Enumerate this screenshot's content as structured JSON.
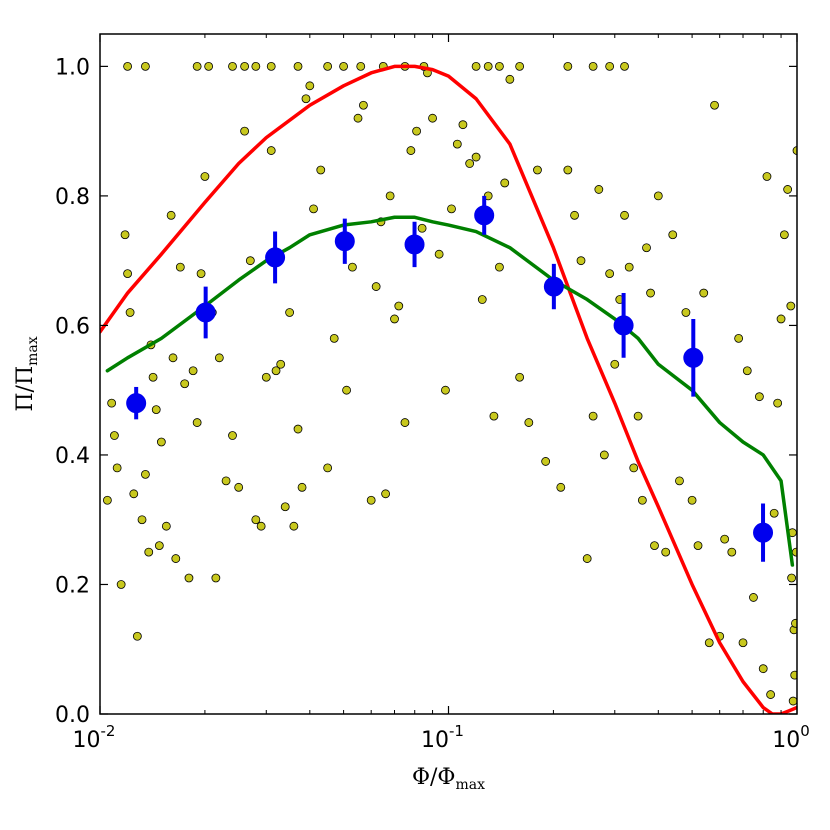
{
  "chart_data": {
    "type": "scatter",
    "xscale": "log",
    "xlim": [
      0.01,
      1.0
    ],
    "ylim": [
      0.0,
      1.05
    ],
    "grid": false,
    "xlabel": "Φ/Φ",
    "xlabel_sub": "max",
    "ylabel": "Π/Π",
    "ylabel_sub": "max",
    "x_ticks": [
      {
        "value": 0.01,
        "base": "10",
        "exp": "-2"
      },
      {
        "value": 0.1,
        "base": "10",
        "exp": "-1"
      },
      {
        "value": 1.0,
        "base": "10",
        "exp": "0"
      }
    ],
    "y_ticks": [
      {
        "value": 0.0,
        "label": "0.0"
      },
      {
        "value": 0.2,
        "label": "0.2"
      },
      {
        "value": 0.4,
        "label": "0.4"
      },
      {
        "value": 0.6,
        "label": "0.6"
      },
      {
        "value": 0.8,
        "label": "0.8"
      },
      {
        "value": 1.0,
        "label": "1.0"
      }
    ],
    "colors": {
      "scatter_fill": "#c8c81e",
      "scatter_edge": "#000000",
      "red_curve": "#ff0000",
      "green_curve": "#008000",
      "binned": "#0000ee"
    },
    "scatter": [
      [
        0.0105,
        0.33
      ],
      [
        0.0108,
        0.48
      ],
      [
        0.011,
        0.43
      ],
      [
        0.0112,
        0.38
      ],
      [
        0.0115,
        0.2
      ],
      [
        0.0118,
        0.74
      ],
      [
        0.012,
        0.68
      ],
      [
        0.0122,
        0.62
      ],
      [
        0.0125,
        0.34
      ],
      [
        0.0128,
        0.12
      ],
      [
        0.013,
        0.48
      ],
      [
        0.0132,
        0.3
      ],
      [
        0.0135,
        0.37
      ],
      [
        0.0138,
        0.25
      ],
      [
        0.014,
        0.57
      ],
      [
        0.0142,
        0.52
      ],
      [
        0.0145,
        0.47
      ],
      [
        0.0148,
        0.26
      ],
      [
        0.015,
        0.42
      ],
      [
        0.0155,
        0.29
      ],
      [
        0.016,
        0.77
      ],
      [
        0.0162,
        0.55
      ],
      [
        0.0165,
        0.24
      ],
      [
        0.017,
        0.69
      ],
      [
        0.0175,
        0.51
      ],
      [
        0.018,
        0.21
      ],
      [
        0.0185,
        0.53
      ],
      [
        0.019,
        0.45
      ],
      [
        0.0195,
        0.68
      ],
      [
        0.02,
        0.83
      ],
      [
        0.021,
        0.62
      ],
      [
        0.0215,
        0.21
      ],
      [
        0.022,
        0.55
      ],
      [
        0.023,
        0.36
      ],
      [
        0.024,
        0.43
      ],
      [
        0.025,
        0.35
      ],
      [
        0.026,
        0.9
      ],
      [
        0.027,
        0.7
      ],
      [
        0.028,
        0.3
      ],
      [
        0.029,
        0.29
      ],
      [
        0.03,
        0.52
      ],
      [
        0.031,
        0.87
      ],
      [
        0.032,
        0.53
      ],
      [
        0.033,
        0.54
      ],
      [
        0.034,
        0.32
      ],
      [
        0.035,
        0.62
      ],
      [
        0.036,
        0.29
      ],
      [
        0.037,
        0.44
      ],
      [
        0.038,
        0.35
      ],
      [
        0.039,
        0.95
      ],
      [
        0.04,
        0.97
      ],
      [
        0.041,
        0.78
      ],
      [
        0.043,
        0.84
      ],
      [
        0.045,
        0.38
      ],
      [
        0.047,
        0.58
      ],
      [
        0.049,
        0.73
      ],
      [
        0.051,
        0.5
      ],
      [
        0.053,
        0.69
      ],
      [
        0.055,
        0.92
      ],
      [
        0.057,
        0.94
      ],
      [
        0.06,
        0.33
      ],
      [
        0.062,
        0.66
      ],
      [
        0.064,
        0.76
      ],
      [
        0.066,
        0.34
      ],
      [
        0.068,
        0.8
      ],
      [
        0.07,
        0.61
      ],
      [
        0.072,
        0.63
      ],
      [
        0.075,
        0.45
      ],
      [
        0.078,
        0.87
      ],
      [
        0.081,
        0.9
      ],
      [
        0.084,
        0.75
      ],
      [
        0.087,
        0.99
      ],
      [
        0.09,
        0.92
      ],
      [
        0.094,
        0.71
      ],
      [
        0.098,
        0.5
      ],
      [
        0.102,
        0.78
      ],
      [
        0.106,
        0.88
      ],
      [
        0.11,
        0.91
      ],
      [
        0.115,
        0.85
      ],
      [
        0.12,
        0.86
      ],
      [
        0.125,
        0.64
      ],
      [
        0.13,
        0.8
      ],
      [
        0.135,
        0.46
      ],
      [
        0.14,
        0.69
      ],
      [
        0.145,
        0.82
      ],
      [
        0.15,
        0.98
      ],
      [
        0.16,
        0.52
      ],
      [
        0.17,
        0.45
      ],
      [
        0.18,
        0.84
      ],
      [
        0.19,
        0.39
      ],
      [
        0.2,
        0.66
      ],
      [
        0.21,
        0.35
      ],
      [
        0.22,
        0.84
      ],
      [
        0.23,
        0.77
      ],
      [
        0.24,
        0.7
      ],
      [
        0.25,
        0.24
      ],
      [
        0.26,
        0.46
      ],
      [
        0.27,
        0.81
      ],
      [
        0.28,
        0.4
      ],
      [
        0.29,
        0.68
      ],
      [
        0.3,
        0.54
      ],
      [
        0.31,
        0.64
      ],
      [
        0.32,
        0.77
      ],
      [
        0.33,
        0.69
      ],
      [
        0.34,
        0.38
      ],
      [
        0.35,
        0.46
      ],
      [
        0.36,
        0.33
      ],
      [
        0.37,
        0.72
      ],
      [
        0.38,
        0.65
      ],
      [
        0.39,
        0.26
      ],
      [
        0.4,
        0.8
      ],
      [
        0.42,
        0.25
      ],
      [
        0.44,
        0.74
      ],
      [
        0.46,
        0.36
      ],
      [
        0.48,
        0.62
      ],
      [
        0.5,
        0.33
      ],
      [
        0.52,
        0.26
      ],
      [
        0.54,
        0.65
      ],
      [
        0.56,
        0.11
      ],
      [
        0.58,
        0.94
      ],
      [
        0.6,
        0.12
      ],
      [
        0.62,
        0.27
      ],
      [
        0.65,
        0.25
      ],
      [
        0.68,
        0.58
      ],
      [
        0.7,
        0.11
      ],
      [
        0.72,
        0.53
      ],
      [
        0.75,
        0.18
      ],
      [
        0.78,
        0.49
      ],
      [
        0.8,
        0.07
      ],
      [
        0.82,
        0.83
      ],
      [
        0.84,
        0.03
      ],
      [
        0.86,
        0.31
      ],
      [
        0.88,
        0.48
      ],
      [
        0.9,
        0.61
      ],
      [
        0.92,
        0.74
      ],
      [
        0.94,
        0.81
      ],
      [
        0.96,
        0.63
      ],
      [
        0.97,
        0.28
      ],
      [
        0.98,
        0.13
      ],
      [
        0.99,
        0.14
      ],
      [
        1.0,
        0.87
      ],
      [
        0.995,
        0.25
      ],
      [
        0.985,
        0.06
      ],
      [
        0.975,
        0.02
      ],
      [
        0.965,
        0.21
      ],
      [
        0.012,
        1.0
      ],
      [
        0.0135,
        1.0
      ],
      [
        0.019,
        1.0
      ],
      [
        0.0205,
        1.0
      ],
      [
        0.024,
        1.0
      ],
      [
        0.026,
        1.0
      ],
      [
        0.028,
        1.0
      ],
      [
        0.031,
        1.0
      ],
      [
        0.037,
        1.0
      ],
      [
        0.045,
        1.0
      ],
      [
        0.05,
        1.0
      ],
      [
        0.056,
        1.0
      ],
      [
        0.065,
        1.0
      ],
      [
        0.075,
        1.0
      ],
      [
        0.085,
        1.0
      ],
      [
        0.12,
        1.0
      ],
      [
        0.13,
        1.0
      ],
      [
        0.14,
        1.0
      ],
      [
        0.16,
        1.0
      ],
      [
        0.22,
        1.0
      ],
      [
        0.26,
        1.0
      ],
      [
        0.29,
        1.0
      ],
      [
        0.32,
        1.0
      ]
    ],
    "red_curve": [
      [
        0.01,
        0.59
      ],
      [
        0.012,
        0.65
      ],
      [
        0.015,
        0.71
      ],
      [
        0.02,
        0.79
      ],
      [
        0.025,
        0.85
      ],
      [
        0.03,
        0.89
      ],
      [
        0.04,
        0.94
      ],
      [
        0.05,
        0.97
      ],
      [
        0.06,
        0.99
      ],
      [
        0.07,
        1.0
      ],
      [
        0.08,
        1.0
      ],
      [
        0.09,
        0.995
      ],
      [
        0.1,
        0.985
      ],
      [
        0.12,
        0.95
      ],
      [
        0.15,
        0.88
      ],
      [
        0.2,
        0.72
      ],
      [
        0.25,
        0.58
      ],
      [
        0.3,
        0.48
      ],
      [
        0.35,
        0.39
      ],
      [
        0.4,
        0.32
      ],
      [
        0.5,
        0.2
      ],
      [
        0.6,
        0.11
      ],
      [
        0.7,
        0.05
      ],
      [
        0.8,
        0.01
      ],
      [
        0.85,
        0.0
      ],
      [
        0.9,
        0.0
      ],
      [
        0.95,
        0.005
      ],
      [
        1.0,
        0.01
      ]
    ],
    "green_curve": [
      [
        0.0105,
        0.53
      ],
      [
        0.012,
        0.55
      ],
      [
        0.015,
        0.58
      ],
      [
        0.02,
        0.63
      ],
      [
        0.025,
        0.67
      ],
      [
        0.03,
        0.7
      ],
      [
        0.035,
        0.72
      ],
      [
        0.04,
        0.74
      ],
      [
        0.05,
        0.755
      ],
      [
        0.06,
        0.76
      ],
      [
        0.07,
        0.767
      ],
      [
        0.08,
        0.767
      ],
      [
        0.09,
        0.76
      ],
      [
        0.1,
        0.755
      ],
      [
        0.12,
        0.745
      ],
      [
        0.15,
        0.72
      ],
      [
        0.2,
        0.67
      ],
      [
        0.25,
        0.64
      ],
      [
        0.3,
        0.61
      ],
      [
        0.35,
        0.58
      ],
      [
        0.4,
        0.54
      ],
      [
        0.5,
        0.5
      ],
      [
        0.6,
        0.45
      ],
      [
        0.7,
        0.42
      ],
      [
        0.8,
        0.4
      ],
      [
        0.9,
        0.36
      ],
      [
        0.97,
        0.23
      ]
    ],
    "binned": [
      {
        "x": 0.0127,
        "y": 0.48,
        "err": 0.025
      },
      {
        "x": 0.0201,
        "y": 0.62,
        "err": 0.04
      },
      {
        "x": 0.0318,
        "y": 0.705,
        "err": 0.04
      },
      {
        "x": 0.0504,
        "y": 0.73,
        "err": 0.035
      },
      {
        "x": 0.0799,
        "y": 0.725,
        "err": 0.035
      },
      {
        "x": 0.1266,
        "y": 0.77,
        "err": 0.03
      },
      {
        "x": 0.2006,
        "y": 0.66,
        "err": 0.035
      },
      {
        "x": 0.318,
        "y": 0.6,
        "err": 0.05
      },
      {
        "x": 0.504,
        "y": 0.55,
        "err": 0.06
      },
      {
        "x": 0.799,
        "y": 0.28,
        "err": 0.045
      }
    ]
  }
}
